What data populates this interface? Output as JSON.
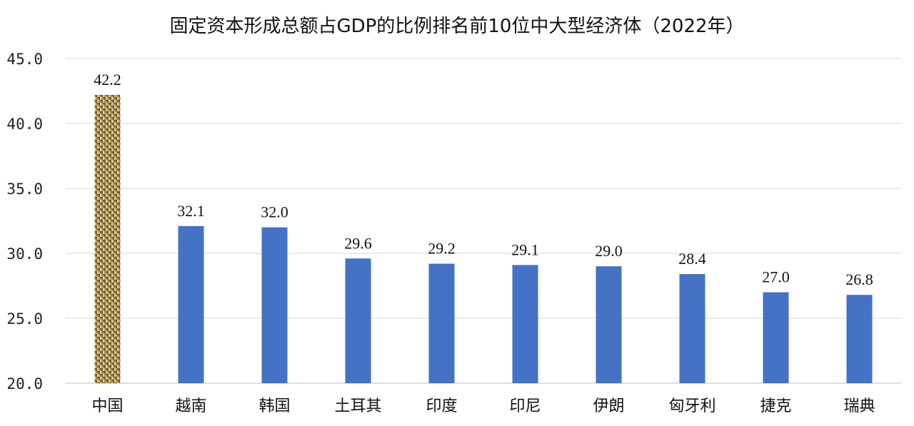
{
  "chart_data": {
    "type": "bar",
    "title": "固定资本形成总额占GDP的比例排名前10位中大型经济体（2022年）",
    "categories": [
      "中国",
      "越南",
      "韩国",
      "土耳其",
      "印度",
      "印尼",
      "伊朗",
      "匈牙利",
      "捷克",
      "瑞典"
    ],
    "values": [
      42.2,
      32.1,
      32.0,
      29.6,
      29.2,
      29.1,
      29.0,
      28.4,
      27.0,
      26.8
    ],
    "data_labels": [
      "42.2",
      "32.1",
      "32.0",
      "29.6",
      "29.2",
      "29.1",
      "29.0",
      "28.4",
      "27.0",
      "26.8"
    ],
    "ylim": [
      20,
      45
    ],
    "yticks": [
      20,
      25,
      30,
      35,
      40,
      45
    ],
    "ytick_labels": [
      "20.0",
      "25.0",
      "30.0",
      "35.0",
      "40.0",
      "45.0"
    ],
    "xlabel": "",
    "ylabel": "",
    "grid": true,
    "colors": {
      "bar": "#4472c4",
      "highlight_base": "#b59a5a",
      "highlight_dark": "#6e5a30",
      "highlight_light": "#e3d3a4"
    },
    "highlight_index": 0
  }
}
